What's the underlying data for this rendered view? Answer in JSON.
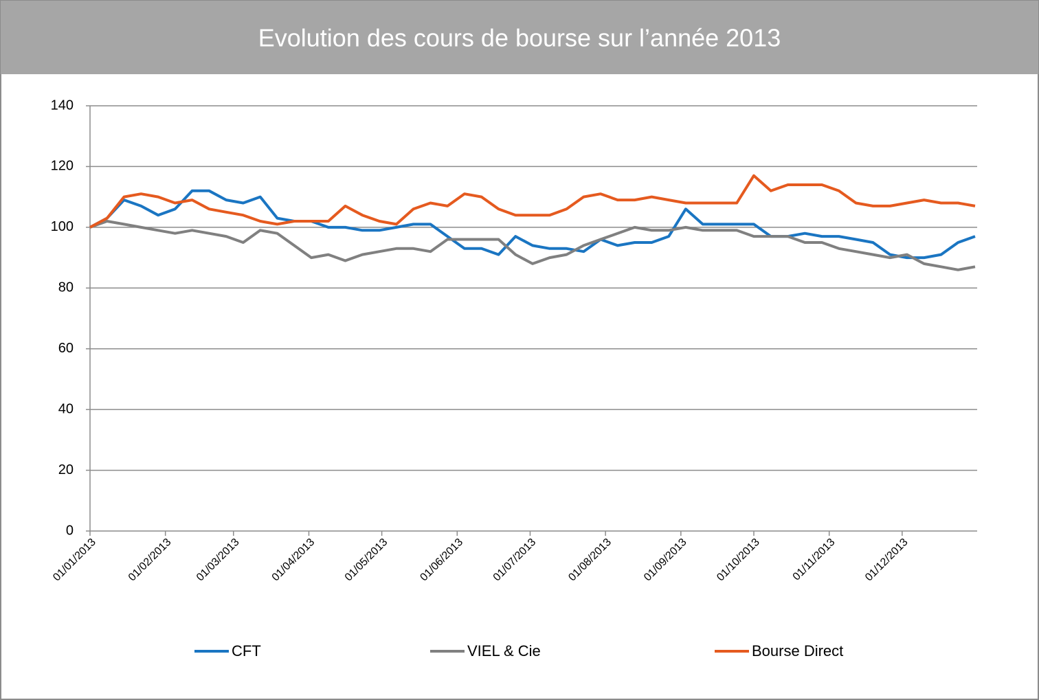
{
  "chart_data": {
    "type": "line",
    "title": "Evolution des cours de bourse sur l’année 2013",
    "x": [
      "2013-01-01",
      "2013-01-08",
      "2013-01-15",
      "2013-01-22",
      "2013-01-29",
      "2013-02-05",
      "2013-02-12",
      "2013-02-19",
      "2013-02-26",
      "2013-03-05",
      "2013-03-12",
      "2013-03-19",
      "2013-03-26",
      "2013-04-02",
      "2013-04-09",
      "2013-04-16",
      "2013-04-23",
      "2013-04-30",
      "2013-05-07",
      "2013-05-14",
      "2013-05-21",
      "2013-05-28",
      "2013-06-04",
      "2013-06-11",
      "2013-06-18",
      "2013-06-25",
      "2013-07-02",
      "2013-07-09",
      "2013-07-16",
      "2013-07-23",
      "2013-07-30",
      "2013-08-06",
      "2013-08-13",
      "2013-08-20",
      "2013-08-27",
      "2013-09-03",
      "2013-09-10",
      "2013-09-17",
      "2013-09-24",
      "2013-10-01",
      "2013-10-08",
      "2013-10-15",
      "2013-10-22",
      "2013-10-29",
      "2013-11-05",
      "2013-11-12",
      "2013-11-19",
      "2013-11-26",
      "2013-12-03",
      "2013-12-10",
      "2013-12-17",
      "2013-12-24",
      "2013-12-31"
    ],
    "series": [
      {
        "name": "CFT",
        "color": "#1a75c2",
        "values": [
          100,
          103,
          109,
          107,
          104,
          106,
          112,
          112,
          109,
          108,
          110,
          103,
          102,
          102,
          100,
          100,
          99,
          99,
          100,
          101,
          101,
          97,
          93,
          93,
          91,
          97,
          94,
          93,
          93,
          92,
          96,
          94,
          95,
          95,
          97,
          106,
          101,
          101,
          101,
          101,
          97,
          97,
          98,
          97,
          97,
          96,
          95,
          91,
          90,
          90,
          91,
          95,
          97
        ]
      },
      {
        "name": "VIEL & Cie",
        "color": "#808080",
        "values": [
          100,
          102,
          101,
          100,
          99,
          98,
          99,
          98,
          97,
          95,
          99,
          98,
          94,
          90,
          91,
          89,
          91,
          92,
          93,
          93,
          92,
          96,
          96,
          96,
          96,
          91,
          88,
          90,
          91,
          94,
          96,
          98,
          100,
          99,
          99,
          100,
          99,
          99,
          99,
          97,
          97,
          97,
          95,
          95,
          93,
          92,
          91,
          90,
          91,
          88,
          87,
          86,
          87
        ]
      },
      {
        "name": "Bourse Direct",
        "color": "#e55a1f",
        "values": [
          100,
          103,
          110,
          111,
          110,
          108,
          109,
          106,
          105,
          104,
          102,
          101,
          102,
          102,
          102,
          107,
          104,
          102,
          101,
          106,
          108,
          107,
          111,
          110,
          106,
          104,
          104,
          104,
          106,
          110,
          111,
          109,
          109,
          110,
          109,
          108,
          108,
          108,
          108,
          117,
          112,
          114,
          114,
          114,
          112,
          108,
          107,
          107,
          108,
          109,
          108,
          108,
          107
        ]
      }
    ],
    "xlim": [
      "2013-01-01",
      "2013-12-31"
    ],
    "xticks": [
      {
        "value": "2013-01-01",
        "label": "01/01/2013"
      },
      {
        "value": "2013-02-01",
        "label": "01/02/2013"
      },
      {
        "value": "2013-03-01",
        "label": "01/03/2013"
      },
      {
        "value": "2013-04-01",
        "label": "01/04/2013"
      },
      {
        "value": "2013-05-01",
        "label": "01/05/2013"
      },
      {
        "value": "2013-06-01",
        "label": "01/06/2013"
      },
      {
        "value": "2013-07-01",
        "label": "01/07/2013"
      },
      {
        "value": "2013-08-01",
        "label": "01/08/2013"
      },
      {
        "value": "2013-09-01",
        "label": "01/09/2013"
      },
      {
        "value": "2013-10-01",
        "label": "01/10/2013"
      },
      {
        "value": "2013-11-01",
        "label": "01/11/2013"
      },
      {
        "value": "2013-12-01",
        "label": "01/12/2013"
      }
    ],
    "ylim": [
      0,
      140
    ],
    "yticks": [
      0,
      20,
      40,
      60,
      80,
      100,
      120,
      140
    ],
    "grid": true,
    "legend": "bottom"
  }
}
